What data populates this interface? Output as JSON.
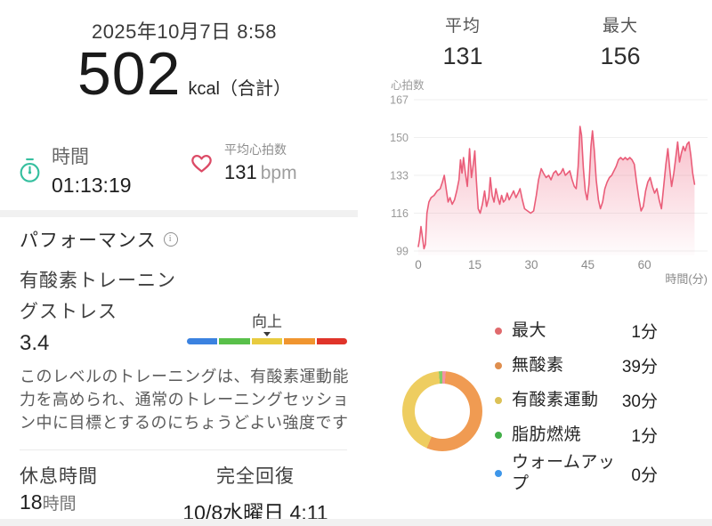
{
  "left_panel": {
    "date": "2025年10月7日 8:58",
    "calories": {
      "value": "502",
      "unit": "kcal（合計）"
    },
    "duration": {
      "label": "時間",
      "value": "01:13:19"
    },
    "avg_heart_rate": {
      "label": "平均心拍数",
      "value": "131",
      "unit": "bpm"
    },
    "performance": {
      "title": "パフォーマンス",
      "metric_label_lines": [
        "有酸素トレーニン",
        "グストレス"
      ],
      "score": "3.4",
      "gauge": {
        "pointer_label": "向上",
        "segment_colors": [
          "#3b82e0",
          "#59c04a",
          "#e8cb3f",
          "#f0952f",
          "#e0342a"
        ],
        "pointer_segment_index": 2
      },
      "description_lines": [
        "このレベルのトレーニングは、有酸素運動能",
        "力を高められ、通常のトレーニングセッショ",
        "ン中に目標とするのにちょうどよい強度です"
      ]
    },
    "recovery": {
      "rest_label": "休息時間",
      "rest_value": "18",
      "rest_unit": "時間",
      "full_recovery_label": "完全回復",
      "full_recovery_value": "10/8水曜日 4:11"
    }
  },
  "right_panel": {
    "avg": {
      "label": "平均",
      "value": "131"
    },
    "max": {
      "label": "最大",
      "value": "156"
    }
  },
  "chart_data": [
    {
      "type": "area",
      "title": "心拍数",
      "xlabel": "時間(分)",
      "x_ticks": [
        0,
        15,
        30,
        45,
        60
      ],
      "y_ticks": [
        167,
        150,
        133,
        116,
        99
      ],
      "ylim": [
        99,
        167
      ],
      "xlim": [
        0,
        76
      ],
      "grid": true,
      "line_color": "#ea5d79",
      "fill_top_color": "rgba(237,96,124,0.50)",
      "fill_bottom_color": "rgba(237,96,124,0.02)",
      "series": [
        [
          0,
          101
        ],
        [
          0.3,
          104
        ],
        [
          0.7,
          110
        ],
        [
          1.1,
          105
        ],
        [
          1.5,
          100
        ],
        [
          1.9,
          102
        ],
        [
          2.3,
          116
        ],
        [
          2.8,
          121
        ],
        [
          3.4,
          123
        ],
        [
          4.2,
          124
        ],
        [
          5,
          126
        ],
        [
          5.8,
          127
        ],
        [
          6.4,
          130
        ],
        [
          6.9,
          133
        ],
        [
          7.4,
          127
        ],
        [
          7.9,
          121
        ],
        [
          8.4,
          123
        ],
        [
          9,
          120
        ],
        [
          9.6,
          122
        ],
        [
          10.2,
          126
        ],
        [
          10.8,
          131
        ],
        [
          11.2,
          140
        ],
        [
          11.6,
          134
        ],
        [
          12,
          141
        ],
        [
          12.5,
          134
        ],
        [
          13,
          128
        ],
        [
          13.6,
          145
        ],
        [
          14.1,
          132
        ],
        [
          14.6,
          138
        ],
        [
          15,
          144
        ],
        [
          15.4,
          131
        ],
        [
          15.9,
          118
        ],
        [
          16.4,
          116
        ],
        [
          17,
          120
        ],
        [
          17.6,
          126
        ],
        [
          18.1,
          119
        ],
        [
          18.7,
          123
        ],
        [
          19.1,
          132
        ],
        [
          19.6,
          124
        ],
        [
          20.1,
          121
        ],
        [
          20.6,
          127
        ],
        [
          21.1,
          123
        ],
        [
          21.6,
          120
        ],
        [
          22.1,
          124
        ],
        [
          22.6,
          121
        ],
        [
          23.1,
          122
        ],
        [
          23.6,
          125
        ],
        [
          24.1,
          122
        ],
        [
          24.7,
          124
        ],
        [
          25.3,
          126
        ],
        [
          25.9,
          123
        ],
        [
          26.5,
          125
        ],
        [
          27,
          127
        ],
        [
          27.6,
          122
        ],
        [
          28.2,
          118
        ],
        [
          29,
          117
        ],
        [
          29.8,
          116
        ],
        [
          30.6,
          117
        ],
        [
          31.3,
          124
        ],
        [
          31.9,
          131
        ],
        [
          32.6,
          136
        ],
        [
          33.2,
          134
        ],
        [
          33.9,
          132
        ],
        [
          34.6,
          133
        ],
        [
          35.2,
          131
        ],
        [
          35.9,
          134
        ],
        [
          36.5,
          135
        ],
        [
          37.1,
          133
        ],
        [
          37.8,
          134
        ],
        [
          38.4,
          136
        ],
        [
          39,
          133
        ],
        [
          39.6,
          134
        ],
        [
          40.2,
          135
        ],
        [
          40.8,
          131
        ],
        [
          41.4,
          128
        ],
        [
          41.9,
          127
        ],
        [
          42.4,
          137
        ],
        [
          42.9,
          155
        ],
        [
          43.3,
          151
        ],
        [
          43.8,
          136
        ],
        [
          44.3,
          126
        ],
        [
          44.8,
          122
        ],
        [
          45.3,
          129
        ],
        [
          45.8,
          146
        ],
        [
          46.2,
          153
        ],
        [
          46.7,
          144
        ],
        [
          47.2,
          131
        ],
        [
          47.8,
          122
        ],
        [
          48.3,
          118
        ],
        [
          48.9,
          121
        ],
        [
          49.5,
          127
        ],
        [
          50.1,
          130
        ],
        [
          50.7,
          132
        ],
        [
          51.3,
          133
        ],
        [
          51.9,
          135
        ],
        [
          52.5,
          137
        ],
        [
          53.1,
          140
        ],
        [
          53.7,
          141
        ],
        [
          54.3,
          140
        ],
        [
          54.9,
          141
        ],
        [
          55.5,
          140
        ],
        [
          56.1,
          141
        ],
        [
          56.7,
          140
        ],
        [
          57.3,
          138
        ],
        [
          57.9,
          130
        ],
        [
          58.5,
          123
        ],
        [
          59.1,
          117
        ],
        [
          59.7,
          119
        ],
        [
          60.3,
          126
        ],
        [
          60.9,
          130
        ],
        [
          61.5,
          132
        ],
        [
          62.1,
          128
        ],
        [
          62.7,
          125
        ],
        [
          63.3,
          127
        ],
        [
          63.9,
          122
        ],
        [
          64.5,
          118
        ],
        [
          65.1,
          128
        ],
        [
          65.7,
          138
        ],
        [
          66.2,
          145
        ],
        [
          66.7,
          136
        ],
        [
          67.2,
          128
        ],
        [
          67.8,
          134
        ],
        [
          68.3,
          141
        ],
        [
          68.8,
          148
        ],
        [
          69.3,
          139
        ],
        [
          69.8,
          143
        ],
        [
          70.3,
          146
        ],
        [
          70.8,
          144
        ],
        [
          71.3,
          147
        ],
        [
          71.8,
          148
        ],
        [
          72.3,
          142
        ],
        [
          72.8,
          134
        ],
        [
          73.3,
          129
        ]
      ]
    },
    {
      "type": "pie",
      "donut": true,
      "unit": "分",
      "legend_position": "right",
      "slices": [
        {
          "label": "最大",
          "minutes": 1,
          "arc_color": "#f493a4",
          "dot_color": "#e06a6d"
        },
        {
          "label": "無酸素",
          "minutes": 39,
          "arc_color": "#f09b52",
          "dot_color": "#df8e4e"
        },
        {
          "label": "有酸素運動",
          "minutes": 30,
          "arc_color": "#eecd60",
          "dot_color": "#dcc156"
        },
        {
          "label": "脂肪燃焼",
          "minutes": 1,
          "arc_color": "#82cc68",
          "dot_color": "#42ae48"
        },
        {
          "label": "ウォームアップ",
          "minutes": 0,
          "arc_color": "#4598ec",
          "dot_color": "#3e96e9"
        }
      ]
    }
  ],
  "icons": {
    "stopwatch_color": "#35bf9f",
    "heart_color": "#dc4a66"
  }
}
